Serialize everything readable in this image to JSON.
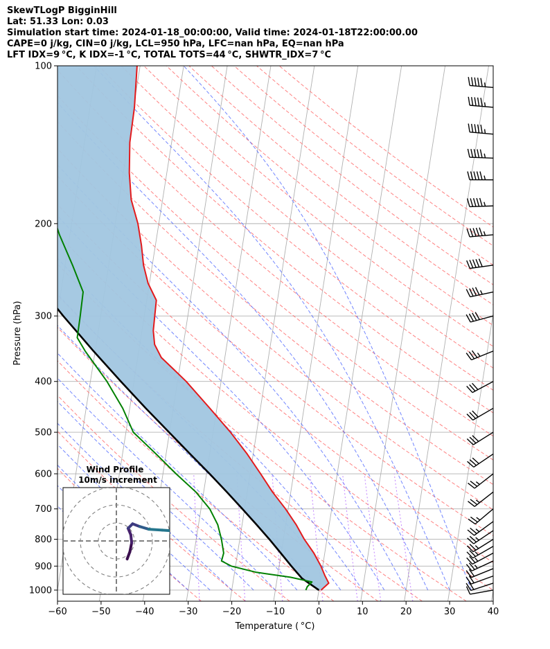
{
  "header": {
    "line1": "SkewTLogP BigginHill",
    "line2": "Lat: 51.33   Lon: 0.03",
    "line3": "Simulation start time: 2024-01-18_00:00:00, Valid time: 2024-01-18T22:00:00.00",
    "line4": "CAPE=0 j/kg, CIN=0 j/kg, LCL=950 hPa, LFC=nan hPa, EQ=nan hPa",
    "line5": "LFT IDX=9 °C, K IDX=-1 °C, TOTAL TOTS=44 °C, SHWTR_IDX=7 °C"
  },
  "chart_data": {
    "type": "line",
    "xlabel": "Temperature ( °C)",
    "ylabel": "Pressure (hPa)",
    "xlim": [
      -60,
      40
    ],
    "ylim": [
      1050,
      100
    ],
    "yscale": "log",
    "skew_note": "skewed T-logP diagram",
    "x_ticks": [
      -60,
      -50,
      -40,
      -30,
      -20,
      -10,
      0,
      10,
      20,
      30,
      40
    ],
    "x_tick_labels": [
      "−60",
      "−50",
      "−40",
      "−30",
      "−20",
      "−10",
      "0",
      "10",
      "20",
      "30",
      "40"
    ],
    "y_ticks": [
      1000,
      900,
      800,
      700,
      600,
      500,
      400,
      300,
      200,
      100
    ],
    "y_tick_labels": [
      "1000",
      "900",
      "800",
      "700",
      "600",
      "500",
      "400",
      "300",
      "200",
      "100"
    ],
    "grid": true,
    "colors": {
      "temperature": "#e31a1c",
      "dewpoint": "#008000",
      "parcel": "#000000",
      "fill": "#a1c6e0",
      "dry_adiabats": "#ff6b6b",
      "moist_adiabats": "#4d66ff",
      "mixing_ratio": "#a64dff",
      "isotherms": "#b0b0b0",
      "zero_isotherm": "#6666ff"
    },
    "series": [
      {
        "key": "temperature",
        "points": [
          [
            1000,
            0.5
          ],
          [
            970,
            2.0
          ],
          [
            940,
            0.9
          ],
          [
            900,
            -0.4
          ],
          [
            850,
            -2.5
          ],
          [
            800,
            -5.2
          ],
          [
            750,
            -7.6
          ],
          [
            700,
            -10.6
          ],
          [
            650,
            -14.2
          ],
          [
            600,
            -17.6
          ],
          [
            550,
            -21.4
          ],
          [
            500,
            -26.0
          ],
          [
            450,
            -31.6
          ],
          [
            400,
            -38.0
          ],
          [
            380,
            -41.2
          ],
          [
            360,
            -44.6
          ],
          [
            340,
            -46.6
          ],
          [
            320,
            -47.4
          ],
          [
            300,
            -47.6
          ],
          [
            280,
            -47.8
          ],
          [
            260,
            -50.3
          ],
          [
            240,
            -52.0
          ],
          [
            220,
            -53.2
          ],
          [
            200,
            -54.8
          ],
          [
            180,
            -57.2
          ],
          [
            160,
            -58.6
          ],
          [
            140,
            -59.6
          ],
          [
            120,
            -59.8
          ],
          [
            100,
            -60.7
          ]
        ]
      },
      {
        "key": "dewpoint",
        "points": [
          [
            1000,
            -3.0
          ],
          [
            985,
            -2.8
          ],
          [
            965,
            -1.9
          ],
          [
            945,
            -7.0
          ],
          [
            925,
            -15.0
          ],
          [
            900,
            -21.0
          ],
          [
            880,
            -23.4
          ],
          [
            850,
            -23.2
          ],
          [
            800,
            -24.2
          ],
          [
            750,
            -25.6
          ],
          [
            700,
            -28.0
          ],
          [
            650,
            -31.8
          ],
          [
            600,
            -37.0
          ],
          [
            550,
            -42.3
          ],
          [
            500,
            -48.3
          ],
          [
            450,
            -51.6
          ],
          [
            400,
            -56.2
          ],
          [
            350,
            -62.3
          ],
          [
            330,
            -64.6
          ],
          [
            300,
            -64.7
          ],
          [
            270,
            -64.9
          ],
          [
            240,
            -68.3
          ],
          [
            210,
            -72.4
          ],
          [
            195,
            -74.3
          ],
          [
            180,
            -76.7
          ],
          [
            170,
            -79.6
          ],
          [
            160,
            -80.0
          ],
          [
            140,
            -80.2
          ],
          [
            120,
            -81.1
          ],
          [
            100,
            -81.0
          ]
        ]
      },
      {
        "key": "parcel",
        "points": [
          [
            1000,
            0.0
          ],
          [
            950,
            -4.3
          ],
          [
            900,
            -7.2
          ],
          [
            850,
            -10.1
          ],
          [
            800,
            -13.2
          ],
          [
            750,
            -16.7
          ],
          [
            700,
            -20.5
          ],
          [
            650,
            -24.7
          ],
          [
            600,
            -29.3
          ],
          [
            550,
            -34.5
          ],
          [
            500,
            -40.1
          ],
          [
            450,
            -46.3
          ],
          [
            400,
            -53.0
          ],
          [
            350,
            -60.4
          ],
          [
            300,
            -68.6
          ],
          [
            250,
            -77.7
          ],
          [
            200,
            -88.1
          ],
          [
            150,
            -100.2
          ],
          [
            100,
            -115.0
          ]
        ]
      }
    ],
    "wind_barbs": {
      "pressures": [
        1000,
        970,
        940,
        910,
        880,
        850,
        825,
        800,
        770,
        740,
        700,
        650,
        600,
        550,
        500,
        450,
        400,
        350,
        300,
        270,
        240,
        210,
        185,
        165,
        150,
        135,
        120,
        110
      ],
      "directions": [
        260,
        252,
        250,
        248,
        245,
        242,
        240,
        238,
        236,
        234,
        230,
        232,
        232,
        236,
        238,
        240,
        242,
        248,
        255,
        258,
        262,
        265,
        268,
        270,
        272,
        275,
        275,
        275
      ],
      "speeds_kt": [
        12,
        20,
        22,
        24,
        25,
        25,
        25,
        25,
        25,
        25,
        25,
        25,
        25,
        30,
        30,
        30,
        30,
        35,
        40,
        45,
        50,
        55,
        55,
        55,
        55,
        55,
        55,
        55
      ]
    },
    "inset": {
      "title_line1": "Wind Profile",
      "title_line2": "10m/s increment",
      "hodograph": [
        [
          1.2,
          2.0
        ],
        [
          1.5,
          1.2
        ],
        [
          1.7,
          0.2
        ],
        [
          1.6,
          -0.7
        ],
        [
          1.3,
          -1.4
        ],
        [
          1.8,
          -1.9
        ],
        [
          2.6,
          -1.6
        ],
        [
          3.6,
          -1.3
        ],
        [
          5.1,
          -1.2
        ],
        [
          6.6,
          -1.1
        ],
        [
          7.6,
          -1.0
        ],
        [
          8.4,
          -0.6
        ],
        [
          9.6,
          -0.1
        ],
        [
          10.7,
          0.9
        ],
        [
          11.4,
          1.8
        ],
        [
          12.0,
          2.6
        ],
        [
          12.6,
          3.4
        ],
        [
          13.2,
          3.9
        ]
      ]
    }
  }
}
